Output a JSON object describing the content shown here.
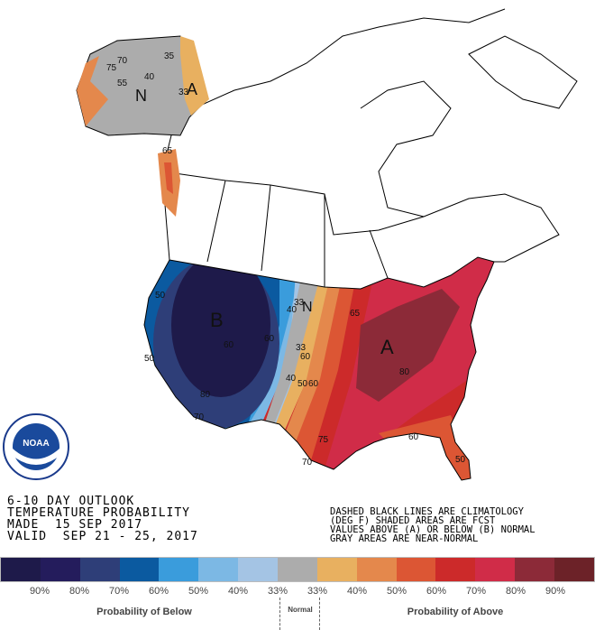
{
  "header": {
    "lines": [
      "6-10 DAY OUTLOOK",
      "TEMPERATURE PROBABILITY",
      "MADE  15 SEP 2017",
      "VALID  SEP 21 - 25, 2017"
    ]
  },
  "note": {
    "lines": [
      "DASHED BLACK LINES ARE CLIMATOLOGY",
      "(DEG F) SHADED AREAS ARE FCST",
      "VALUES ABOVE (A) OR BELOW (B) NORMAL",
      "GRAY AREAS ARE NEAR-NORMAL"
    ]
  },
  "logo": {
    "text": "NOAA",
    "ring_text": "NATIONAL OCEANIC AND ATMOSPHERIC ADMINISTRATION · U.S. DEPARTMENT OF COMMERCE"
  },
  "map": {
    "labels": {
      "below": "B",
      "above": "A",
      "normal": "N",
      "alaska_normal": "N",
      "alaska_above": "A"
    },
    "contours": [
      "50",
      "60",
      "80",
      "70",
      "50",
      "33",
      "40",
      "60",
      "33",
      "60",
      "40",
      "50",
      "60",
      "65",
      "80",
      "75",
      "70",
      "60",
      "50",
      "65",
      "75",
      "70",
      "40",
      "35",
      "33",
      "55"
    ]
  },
  "legend": {
    "colors": [
      "#1e1a4a",
      "#241c5c",
      "#2e3e78",
      "#0b5aa0",
      "#3a9cdc",
      "#7cb8e4",
      "#a4c4e4",
      "#acacac",
      "#e8b060",
      "#e4884c",
      "#dc5634",
      "#cc2a2a",
      "#d02c48",
      "#8c2a38",
      "#6c2228"
    ],
    "percent_labels": [
      "90%",
      "80%",
      "70%",
      "60%",
      "50%",
      "40%",
      "33%",
      "33%",
      "40%",
      "50%",
      "60%",
      "70%",
      "80%",
      "90%"
    ],
    "below_caption": "Probability of Below",
    "normal_caption": "Normal",
    "above_caption": "Probability of Above"
  }
}
